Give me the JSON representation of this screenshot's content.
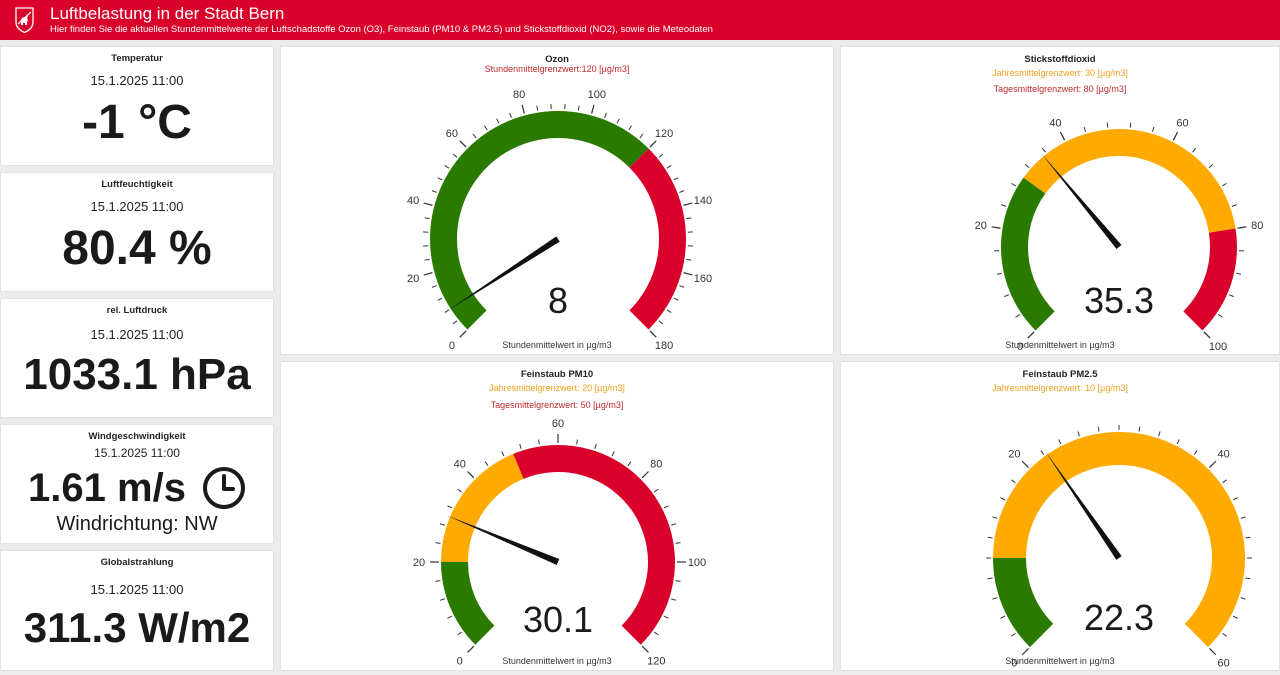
{
  "header": {
    "title": "Luftbelastung in der Stadt Bern",
    "subtitle": "Hier finden Sie die aktuellen Stundenmittelwerte der Luftschadstoffe Ozon (O3), Feinstaub (PM10 & PM2.5) und Stickstoffdioxid (NO2), sowie die Meteodaten",
    "logo_icon": "bern-bear-coat-of-arms-icon"
  },
  "colors": {
    "brand_red": "#d9002b",
    "gauge_green": "#2a7a00",
    "gauge_orange": "#ffaa00",
    "gauge_red": "#d9002b",
    "limit_orange_text": "#f0a020",
    "limit_red_text": "#c0282d"
  },
  "meteo": {
    "temperatur": {
      "label": "Temperatur",
      "date": "15.1.2025 11:00",
      "value": "-1 °C"
    },
    "luftfeuchtigkeit": {
      "label": "Luftfeuchtigkeit",
      "date": "15.1.2025 11:00",
      "value": "80.4 %"
    },
    "luftdruck": {
      "label": "rel. Luftdruck",
      "date": "15.1.2025 11:00",
      "value": "1033.1 hPa"
    },
    "wind": {
      "label": "Windgeschwindigkeit",
      "date": "15.1.2025 11:00",
      "value": "1.61 m/s",
      "direction": "Windrichtung: NW",
      "icon": "clock-icon"
    },
    "globalstrahlung": {
      "label": "Globalstrahlung",
      "date": "15.1.2025 11:00",
      "value": "311.3 W/m2"
    }
  },
  "gauges": {
    "ozon": {
      "title": "Ozon",
      "limits": [
        {
          "text": "Stundenmittelgrenzwert:120 [µg/m3]",
          "color": "red"
        }
      ],
      "footer": "Stundenmittelwert in µg/m3",
      "min": 0,
      "max": 180,
      "value": 8,
      "display": "8",
      "bands": [
        {
          "from": 0,
          "to": 120,
          "color": "green"
        },
        {
          "from": 120,
          "to": 180,
          "color": "red"
        }
      ],
      "major": [
        0,
        20,
        40,
        60,
        80,
        100,
        120,
        140,
        160,
        180
      ],
      "minor_step": 4
    },
    "no2": {
      "title": "Stickstoffdioxid",
      "limits": [
        {
          "text": "Jahresmittelgrenzwert:  30 [µg/m3]",
          "color": "orange"
        },
        {
          "text": "Tagesmittelgrenzwert: 80 [µg/m3]",
          "color": "red"
        }
      ],
      "footer": "Stundenmittelwert in µg/m3",
      "min": 0,
      "max": 100,
      "value": 35.3,
      "display": "35.3",
      "bands": [
        {
          "from": 0,
          "to": 30,
          "color": "green"
        },
        {
          "from": 30,
          "to": 80,
          "color": "orange"
        },
        {
          "from": 80,
          "to": 100,
          "color": "red"
        }
      ],
      "major": [
        0,
        20,
        40,
        60,
        80,
        100
      ],
      "minor_step": 4
    },
    "pm10": {
      "title": "Feinstaub PM10",
      "limits": [
        {
          "text": "Jahresmittelgrenzwert:  20 [µg/m3]",
          "color": "orange"
        },
        {
          "text": "Tagesmittelgrenzwert: 50 [µg/m3]",
          "color": "red"
        }
      ],
      "footer": "Stundenmittelwert in µg/m3",
      "min": 0,
      "max": 120,
      "value": 30.1,
      "display": "30.1",
      "bands": [
        {
          "from": 0,
          "to": 20,
          "color": "green"
        },
        {
          "from": 20,
          "to": 50,
          "color": "orange"
        },
        {
          "from": 50,
          "to": 120,
          "color": "red"
        }
      ],
      "major": [
        0,
        20,
        40,
        60,
        80,
        100,
        120
      ],
      "minor_step": 4
    },
    "pm25": {
      "title": "Feinstaub PM2.5",
      "limits": [
        {
          "text": "Jahresmittelgrenzwert:  10 [µg/m3]",
          "color": "orange"
        }
      ],
      "footer": "Stundenmittelwert in µg/m3",
      "min": 0,
      "max": 60,
      "value": 22.3,
      "display": "22.3",
      "bands": [
        {
          "from": 0,
          "to": 10,
          "color": "green"
        },
        {
          "from": 10,
          "to": 60,
          "color": "orange"
        }
      ],
      "major": [
        0,
        20,
        40,
        60
      ],
      "minor_step": 2
    }
  }
}
